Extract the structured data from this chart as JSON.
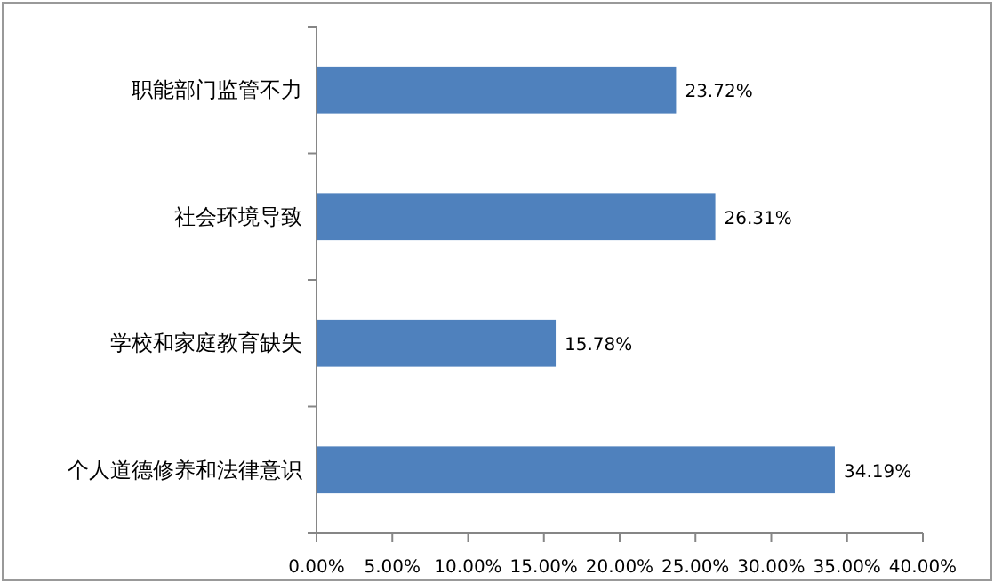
{
  "chart_data": {
    "type": "bar",
    "orientation": "horizontal",
    "categories": [
      "职能部门监管不力",
      "社会环境导致",
      "学校和家庭教育缺失",
      "个人道德修养和法律意识"
    ],
    "values": [
      23.72,
      26.31,
      15.78,
      34.19
    ],
    "value_labels": [
      "23.72%",
      "26.31%",
      "15.78%",
      "34.19%"
    ],
    "color": "#4f81bd",
    "xlim": [
      0,
      40
    ],
    "xticks": [
      {
        "value": 0,
        "label": "0.00%"
      },
      {
        "value": 5,
        "label": "5.00%"
      },
      {
        "value": 10,
        "label": "10.00%"
      },
      {
        "value": 15,
        "label": "15.00%"
      },
      {
        "value": 20,
        "label": "20.00%"
      },
      {
        "value": 25,
        "label": "25.00%"
      },
      {
        "value": 30,
        "label": "30.00%"
      },
      {
        "value": 35,
        "label": "35.00%"
      },
      {
        "value": 40,
        "label": "40.00%"
      }
    ]
  }
}
